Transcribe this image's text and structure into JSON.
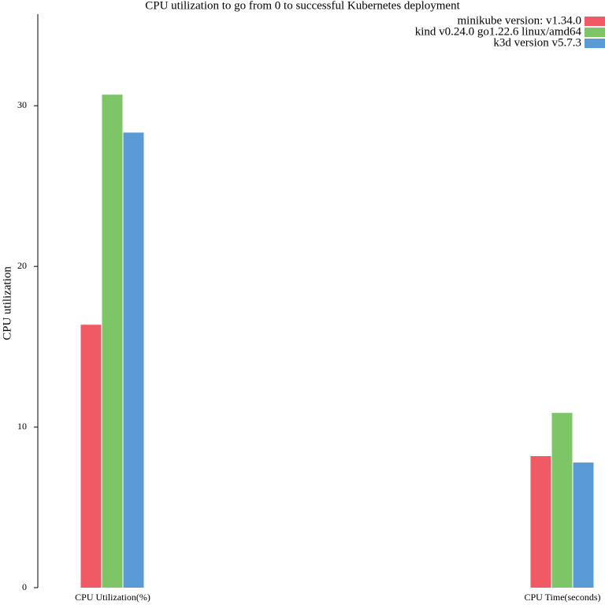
{
  "chart_data": {
    "type": "bar",
    "title": "CPU utilization to go from 0 to successful Kubernetes deployment",
    "y_label": "CPU utilization",
    "categories": [
      "CPU Utilization(%)",
      "CPU Time(seconds)"
    ],
    "series": [
      {
        "name": "minikube version: v1.34.0",
        "color": "#f05a64",
        "values": [
          16.37,
          8.19
        ]
      },
      {
        "name": "kind v0.24.0 go1.22.6 linux/amd64",
        "color": "#7dc567",
        "values": [
          30.69,
          10.88
        ]
      },
      {
        "name": "k3d version v5.7.3",
        "color": "#5b9bd5",
        "values": [
          28.33,
          7.79
        ]
      }
    ],
    "ylim": [
      0,
      35.7
    ],
    "yticks": [
      0,
      10,
      20,
      30
    ],
    "legend": "top-right"
  }
}
